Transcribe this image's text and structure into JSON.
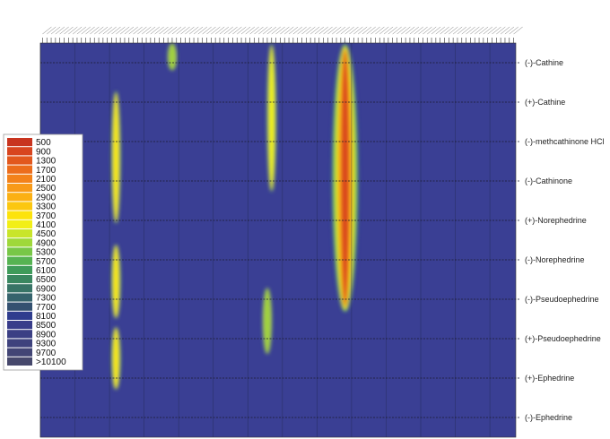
{
  "chart_data": {
    "type": "heatmap",
    "title": "",
    "xlabel": "",
    "ylabel": "",
    "grid": true,
    "background_color": "#3a3f94",
    "row_labels": [
      "(-)-Cathine",
      "(+)-Cathine",
      "(-)-methcathinone HCl",
      "(-)-Cathinone",
      "(+)-Norephedrine",
      "(-)-Norephedrine",
      "(-)-Pseudoephedrine",
      "(+)-Pseudoephedrine",
      "(+)-Ephedrine",
      "(-)-Ephedrine"
    ],
    "column_count": 110,
    "legend": {
      "placement": "left",
      "labels": [
        "500",
        "900",
        "1300",
        "1700",
        "2100",
        "2500",
        "2900",
        "3300",
        "3700",
        "4100",
        "4500",
        "4900",
        "5300",
        "5700",
        "6100",
        "6500",
        "6900",
        "7300",
        "7700",
        "8100",
        "8500",
        "8900",
        "9300",
        "9700",
        ">10100"
      ],
      "colors": [
        "#c8341f",
        "#d8451f",
        "#e2581e",
        "#ec6d1c",
        "#f3821a",
        "#f89a18",
        "#fbb014",
        "#fcc710",
        "#fde30c",
        "#f2ef16",
        "#c9e52a",
        "#9fd83a",
        "#78c747",
        "#56b352",
        "#3f9b5a",
        "#3a8760",
        "#387466",
        "#36636c",
        "#345170",
        "#2f3d8e",
        "#383c8a",
        "#3b3f84",
        "#3e427d",
        "#424575",
        "#46486c"
      ]
    },
    "hotspots": [
      {
        "column": 30,
        "row_start": 0.0,
        "row_end": 0.7,
        "peak": 5000
      },
      {
        "column": 17,
        "row_start": 1.2,
        "row_end": 4.6,
        "peak": 3500
      },
      {
        "column": 53,
        "row_start": 0.0,
        "row_end": 3.8,
        "peak": 3800
      },
      {
        "column": 70,
        "row_start": 0.0,
        "row_end": 6.85,
        "peak": 700
      },
      {
        "column": 17,
        "row_start": 5.1,
        "row_end": 7.0,
        "peak": 3600
      },
      {
        "column": 52,
        "row_start": 6.2,
        "row_end": 7.9,
        "peak": 5200
      },
      {
        "column": 17,
        "row_start": 7.2,
        "row_end": 8.8,
        "peak": 3700
      }
    ]
  }
}
